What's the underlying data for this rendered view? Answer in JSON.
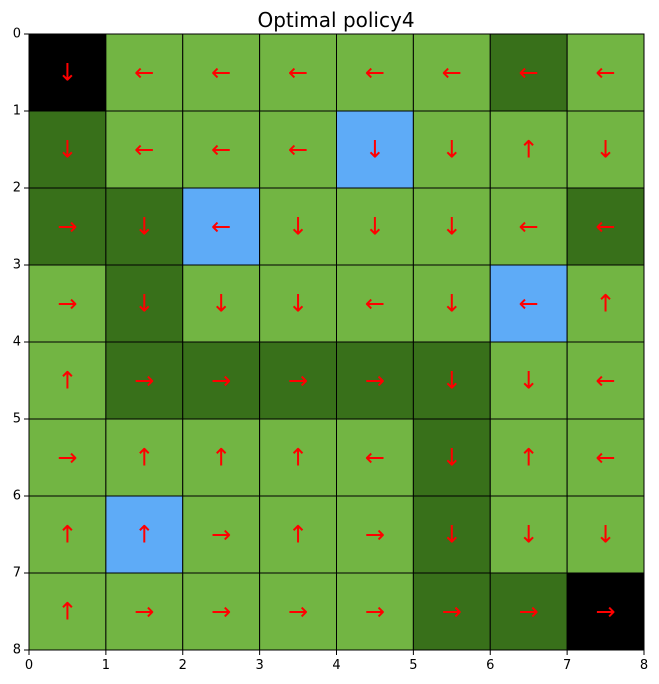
{
  "chart_data": {
    "type": "heatmap",
    "title": "Optimal policy4",
    "xlabel": "",
    "ylabel": "",
    "grid_size": 8,
    "xlim": [
      0,
      8
    ],
    "ylim": [
      8,
      0
    ],
    "x_ticks": [
      "0",
      "1",
      "2",
      "3",
      "4",
      "5",
      "6",
      "7",
      "8"
    ],
    "y_ticks": [
      "0",
      "1",
      "2",
      "3",
      "4",
      "5",
      "6",
      "7",
      "8"
    ],
    "grid": true,
    "legend": "none",
    "cell_types": {
      "G": {
        "name": "normal",
        "color": "#72b543"
      },
      "D": {
        "name": "dark",
        "color": "#38701a"
      },
      "B": {
        "name": "blue",
        "color": "#5eabf7"
      },
      "K": {
        "name": "terminal",
        "color": "#000000"
      }
    },
    "arrow_color": "#ff0000",
    "grid_line_color": "#000000",
    "cells": [
      [
        "K",
        "G",
        "G",
        "G",
        "G",
        "G",
        "D",
        "G"
      ],
      [
        "D",
        "G",
        "G",
        "G",
        "B",
        "G",
        "G",
        "G"
      ],
      [
        "D",
        "D",
        "B",
        "G",
        "G",
        "G",
        "G",
        "D"
      ],
      [
        "G",
        "D",
        "G",
        "G",
        "G",
        "G",
        "B",
        "G"
      ],
      [
        "G",
        "D",
        "D",
        "D",
        "D",
        "D",
        "G",
        "G"
      ],
      [
        "G",
        "G",
        "G",
        "G",
        "G",
        "D",
        "G",
        "G"
      ],
      [
        "G",
        "B",
        "G",
        "G",
        "G",
        "D",
        "G",
        "G"
      ],
      [
        "G",
        "G",
        "G",
        "G",
        "G",
        "D",
        "D",
        "K"
      ]
    ],
    "arrows": [
      [
        "↓",
        "←",
        "←",
        "←",
        "←",
        "←",
        "←",
        "←"
      ],
      [
        "↓",
        "←",
        "←",
        "←",
        "↓",
        "↓",
        "↑",
        "↓"
      ],
      [
        "→",
        "↓",
        "←",
        "↓",
        "↓",
        "↓",
        "←",
        "←"
      ],
      [
        "→",
        "↓",
        "↓",
        "↓",
        "←",
        "↓",
        "←",
        "↑"
      ],
      [
        "↑",
        "→",
        "→",
        "→",
        "→",
        "↓",
        "↓",
        "←"
      ],
      [
        "→",
        "↑",
        "↑",
        "↑",
        "←",
        "↓",
        "↑",
        "←"
      ],
      [
        "↑",
        "↑",
        "→",
        "↑",
        "→",
        "↓",
        "↓",
        "↓"
      ],
      [
        "↑",
        "→",
        "→",
        "→",
        "→",
        "→",
        "→",
        "→"
      ]
    ]
  }
}
